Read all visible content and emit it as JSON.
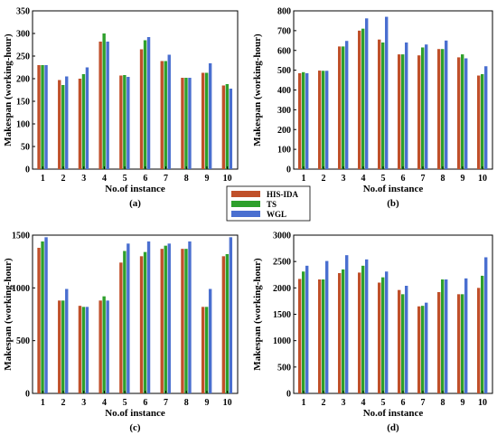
{
  "legend": [
    {
      "name": "HIS-IDA",
      "color": "#c0502a"
    },
    {
      "name": "TS",
      "color": "#2ea02c"
    },
    {
      "name": "WGL",
      "color": "#4a6fd0"
    }
  ],
  "chart_data": [
    {
      "type": "bar",
      "tag": "(a)",
      "xlabel": "No.of instance",
      "ylabel": "Makespan (working-hour)",
      "categories": [
        "1",
        "2",
        "3",
        "4",
        "5",
        "6",
        "7",
        "8",
        "9",
        "10"
      ],
      "ylim": [
        0,
        350
      ],
      "yticks": [
        0,
        50,
        100,
        150,
        200,
        250,
        300,
        350
      ],
      "series": [
        {
          "name": "HIS-IDA",
          "values": [
            230,
            197,
            200,
            282,
            207,
            265,
            239,
            202,
            213,
            185
          ]
        },
        {
          "name": "TS",
          "values": [
            230,
            186,
            210,
            300,
            208,
            285,
            239,
            202,
            213,
            188
          ]
        },
        {
          "name": "WGL",
          "values": [
            230,
            205,
            225,
            282,
            204,
            292,
            253,
            202,
            234,
            178
          ]
        }
      ]
    },
    {
      "type": "bar",
      "tag": "(b)",
      "xlabel": "No.of instance",
      "ylabel": "Makespan (working-hour)",
      "categories": [
        "1",
        "2",
        "3",
        "4",
        "5",
        "6",
        "7",
        "8",
        "9",
        "10"
      ],
      "ylim": [
        0,
        800
      ],
      "yticks": [
        0,
        100,
        200,
        300,
        400,
        500,
        600,
        700,
        800
      ],
      "series": [
        {
          "name": "HIS-IDA",
          "values": [
            485,
            498,
            620,
            700,
            655,
            580,
            575,
            607,
            565,
            473
          ]
        },
        {
          "name": "TS",
          "values": [
            490,
            497,
            620,
            710,
            640,
            580,
            615,
            607,
            580,
            480
          ]
        },
        {
          "name": "WGL",
          "values": [
            485,
            497,
            648,
            762,
            770,
            640,
            630,
            650,
            560,
            520
          ]
        }
      ]
    },
    {
      "type": "bar",
      "tag": "(c)",
      "xlabel": "No.of instance",
      "ylabel": "Makespan (working-hour)",
      "categories": [
        "1",
        "2",
        "3",
        "4",
        "5",
        "6",
        "7",
        "8",
        "9",
        "10"
      ],
      "ylim": [
        0,
        1500
      ],
      "yticks": [
        0,
        500,
        1000,
        1500
      ],
      "series": [
        {
          "name": "HIS-IDA",
          "values": [
            1380,
            880,
            830,
            880,
            1240,
            1300,
            1370,
            1370,
            820,
            1300
          ]
        },
        {
          "name": "TS",
          "values": [
            1440,
            880,
            820,
            920,
            1350,
            1340,
            1400,
            1370,
            820,
            1320
          ]
        },
        {
          "name": "WGL",
          "values": [
            1480,
            990,
            820,
            880,
            1420,
            1440,
            1420,
            1440,
            990,
            1480
          ]
        }
      ]
    },
    {
      "type": "bar",
      "tag": "(d)",
      "xlabel": "No.of instance",
      "ylabel": "Makespan (working-hour)",
      "categories": [
        "1",
        "2",
        "3",
        "4",
        "5",
        "6",
        "7",
        "8",
        "9",
        "10"
      ],
      "ylim": [
        0,
        3000
      ],
      "yticks": [
        0,
        500,
        1000,
        1500,
        2000,
        2500,
        3000
      ],
      "series": [
        {
          "name": "HIS-IDA",
          "values": [
            2170,
            2160,
            2280,
            2290,
            2100,
            1960,
            1650,
            1920,
            1880,
            2000
          ]
        },
        {
          "name": "TS",
          "values": [
            2310,
            2160,
            2350,
            2420,
            2200,
            1880,
            1660,
            2160,
            1880,
            2230
          ]
        },
        {
          "name": "WGL",
          "values": [
            2420,
            2510,
            2620,
            2540,
            2310,
            2040,
            1720,
            2160,
            2180,
            2580
          ]
        }
      ]
    }
  ]
}
